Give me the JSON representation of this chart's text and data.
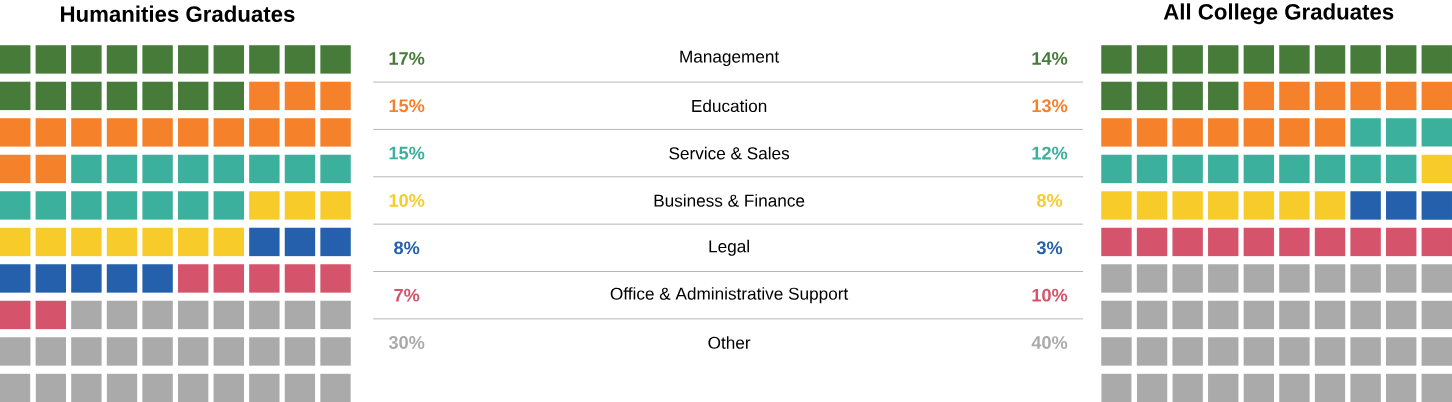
{
  "chart_data": {
    "type": "other",
    "categories": [
      "Management",
      "Education",
      "Service & Sales",
      "Business & Finance",
      "Legal",
      "Office & Administrative Support",
      "Other"
    ],
    "colors": [
      "#467b3a",
      "#f5822a",
      "#3bb09c",
      "#f7cb2a",
      "#2460ac",
      "#d6546b",
      "#aaaaaa"
    ],
    "series": [
      {
        "name": "Humanities Graduates",
        "values": [
          17,
          15,
          15,
          10,
          8,
          7,
          30
        ],
        "value_labels": [
          "17%",
          "15%",
          "15%",
          "10%",
          "8%",
          "7%",
          "30%"
        ]
      },
      {
        "name": "All College Graduates",
        "values": [
          14,
          13,
          12,
          8,
          3,
          10,
          40
        ],
        "value_labels": [
          "14%",
          "13%",
          "12%",
          "8%",
          "3%",
          "10%",
          "40%"
        ]
      }
    ]
  }
}
